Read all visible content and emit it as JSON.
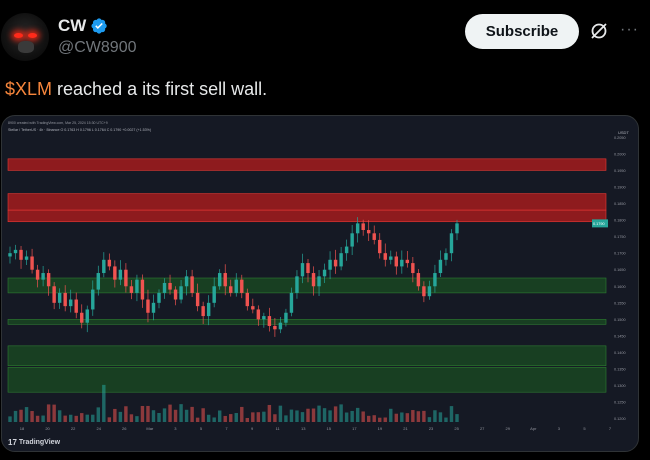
{
  "author": {
    "display_name": "CW",
    "handle": "@CW8900",
    "verified": true,
    "avatar_icon": "dark-creature-red-eyes-avatar"
  },
  "actions": {
    "subscribe_label": "Subscribe",
    "grok_icon": "grok-icon",
    "more_icon": "more-icon",
    "more_glyph": "···"
  },
  "tweet": {
    "cashtag": "$XLM",
    "text": " reached a its first sell wall."
  },
  "colors": {
    "cashtag": "#f7863c",
    "verified": "#1d9bf0",
    "bull": "#26a69a",
    "bear": "#ef5350",
    "sell_zone": "#b71c1c",
    "buy_zone": "#1b5e20",
    "chart_bg": "#151924"
  },
  "chart_embed": {
    "header_line1": "8900 created with TradingView.com, Mar 25, 2024 15:30 UTC+9",
    "header_line2": "Stellar / TetherUS · 4h · Binance  O 0.1763  H 0.1796  L 0.1764  C 0.1790  +0.0027 (+1.53%)",
    "currency_label": "USDT",
    "last_price_tag": "0.1790",
    "watermark": "TradingView",
    "watermark_icon": "tradingview-logo-icon"
  },
  "chart_data": {
    "type": "candlestick",
    "symbol": "Stellar / TetherUS",
    "timeframe": "4h",
    "exchange": "Binance",
    "x_tick_labels": [
      "18",
      "20",
      "22",
      "24",
      "26",
      "Mar",
      "3",
      "5",
      "7",
      "9",
      "11",
      "13",
      "15",
      "17",
      "19",
      "21",
      "23",
      "25",
      "27",
      "29",
      "Apr",
      "3",
      "5",
      "7"
    ],
    "y_tick_labels": [
      "0.2050",
      "0.2000",
      "0.1950",
      "0.1900",
      "0.1850",
      "0.1800",
      "0.1750",
      "0.1700",
      "0.1650",
      "0.1600",
      "0.1550",
      "0.1500",
      "0.1450",
      "0.1400",
      "0.1350",
      "0.1300",
      "0.1250",
      "0.1200"
    ],
    "y_range": [
      0.119,
      0.206
    ],
    "zones": [
      {
        "kind": "sell",
        "low": 0.195,
        "high": 0.1985
      },
      {
        "kind": "sell",
        "low": 0.183,
        "high": 0.188
      },
      {
        "kind": "sell",
        "low": 0.1795,
        "high": 0.183
      },
      {
        "kind": "buy",
        "low": 0.158,
        "high": 0.1625
      },
      {
        "kind": "buy",
        "low": 0.1485,
        "high": 0.15
      },
      {
        "kind": "buy",
        "low": 0.128,
        "high": 0.1355
      },
      {
        "kind": "buy",
        "low": 0.136,
        "high": 0.142
      }
    ],
    "price_path": [
      0.17,
      0.171,
      0.168,
      0.169,
      0.165,
      0.162,
      0.164,
      0.16,
      0.155,
      0.158,
      0.154,
      0.156,
      0.152,
      0.149,
      0.153,
      0.159,
      0.164,
      0.168,
      0.166,
      0.162,
      0.165,
      0.16,
      0.158,
      0.162,
      0.156,
      0.152,
      0.155,
      0.158,
      0.161,
      0.159,
      0.156,
      0.16,
      0.163,
      0.158,
      0.154,
      0.151,
      0.155,
      0.16,
      0.164,
      0.16,
      0.158,
      0.162,
      0.158,
      0.154,
      0.153,
      0.15,
      0.151,
      0.148,
      0.147,
      0.149,
      0.152,
      0.158,
      0.163,
      0.167,
      0.164,
      0.16,
      0.163,
      0.165,
      0.168,
      0.166,
      0.17,
      0.172,
      0.176,
      0.179,
      0.177,
      0.176,
      0.174,
      0.17,
      0.168,
      0.169,
      0.166,
      0.168,
      0.167,
      0.164,
      0.16,
      0.157,
      0.16,
      0.164,
      0.168,
      0.17,
      0.176,
      0.179
    ],
    "last_price": 0.179
  }
}
